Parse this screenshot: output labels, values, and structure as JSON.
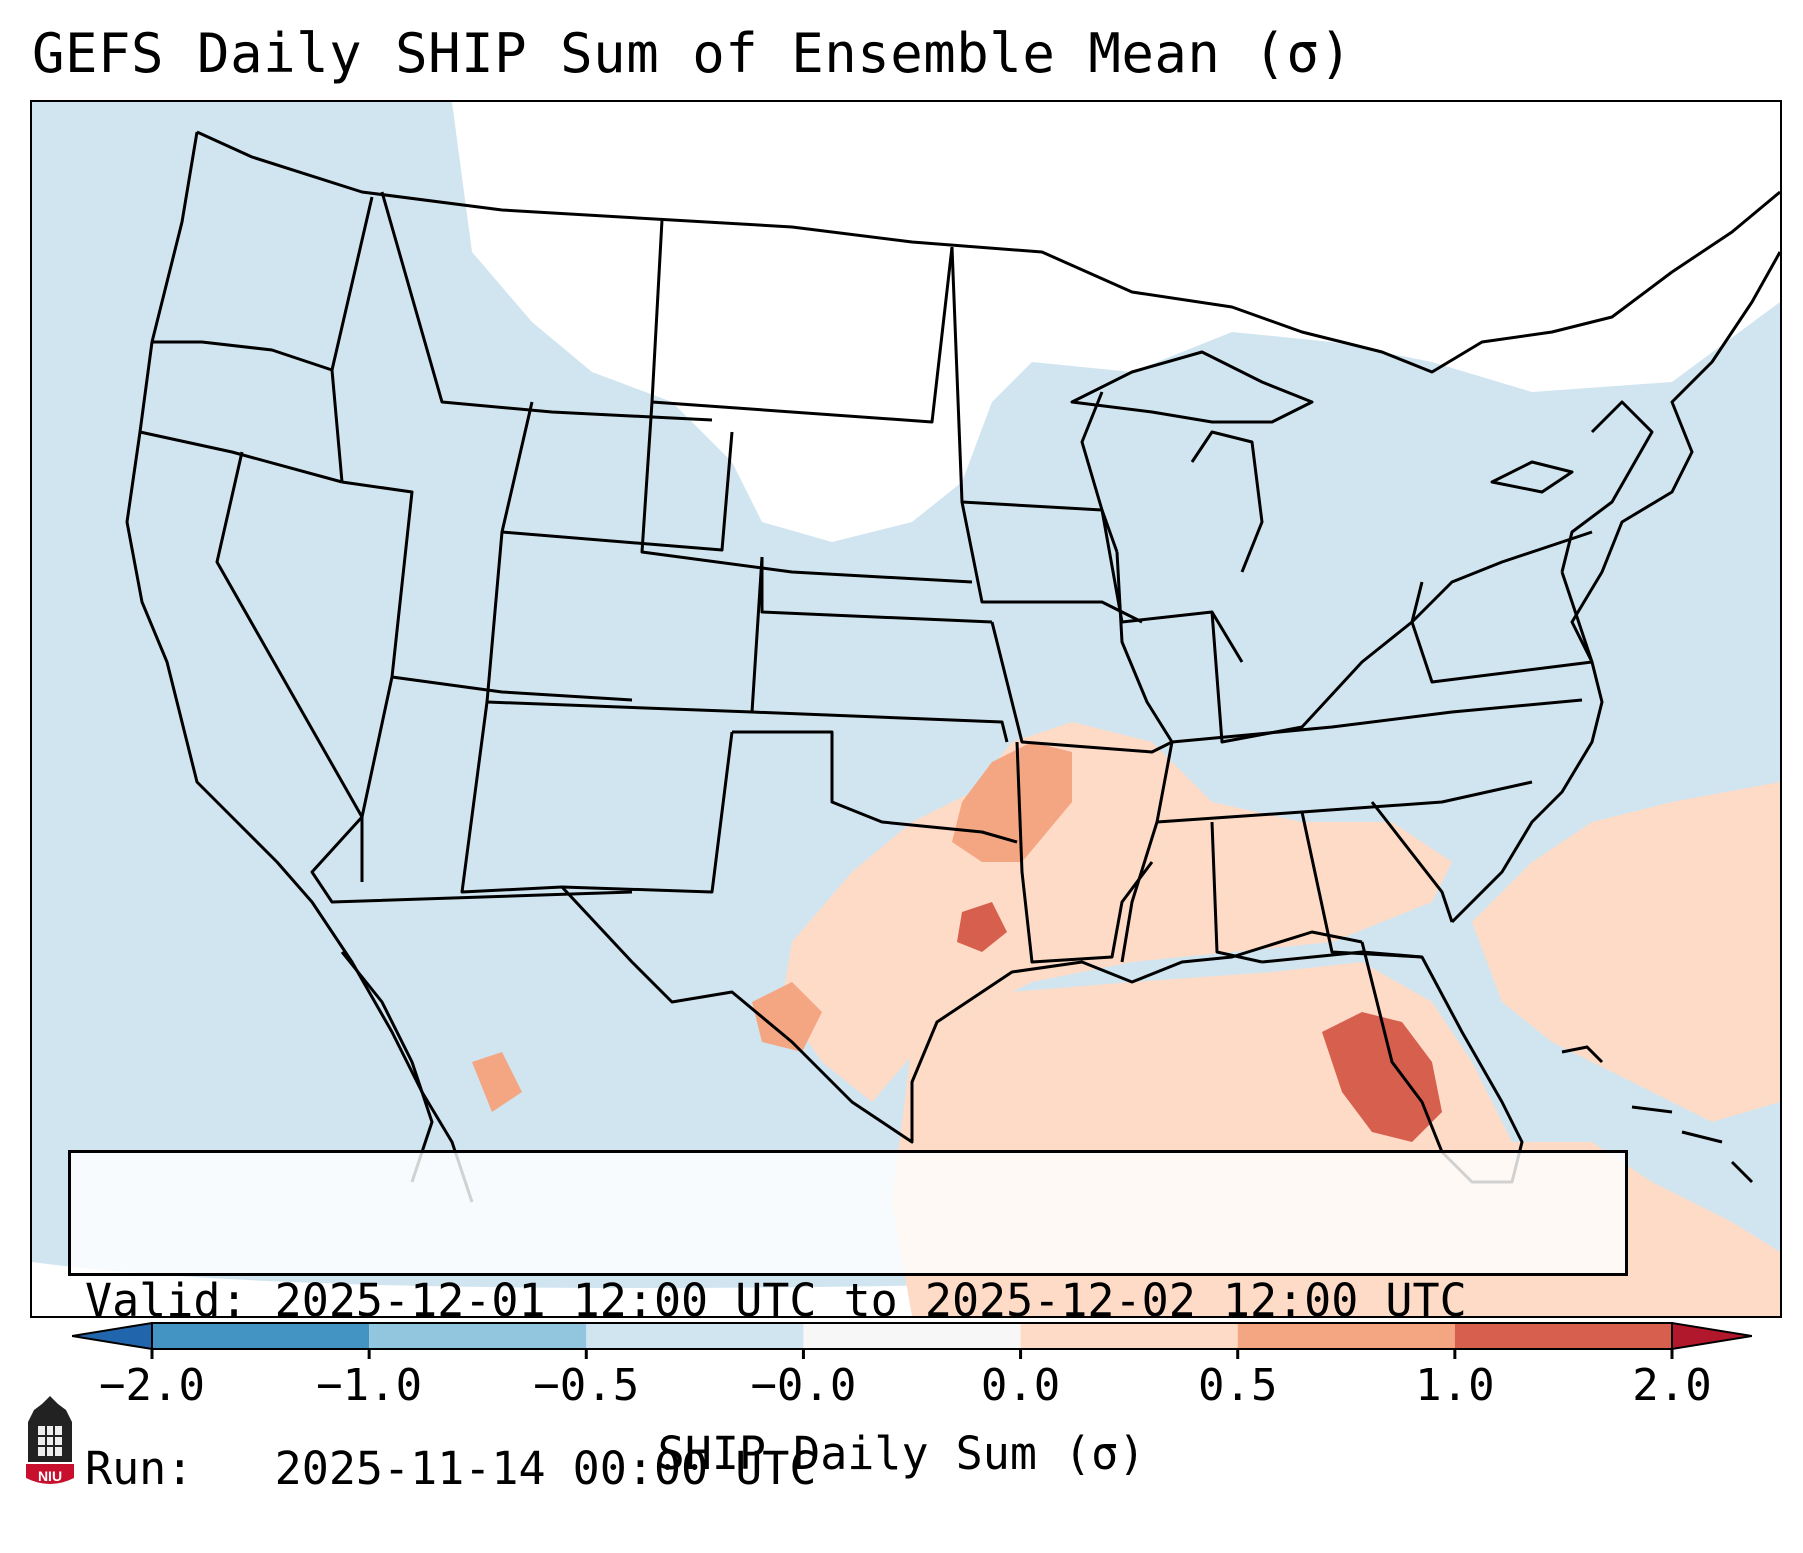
{
  "title": "GEFS Daily SHIP Sum of Ensemble Mean (σ)",
  "valid_line": "Valid: 2025-12-01 12:00 UTC to 2025-12-02 12:00 UTC",
  "run_line": "Run:   2025-11-14 00:00 UTC",
  "colorbar": {
    "label": "SHIP Daily Sum (σ)",
    "ticks": [
      "−2.0",
      "−1.0",
      "−0.5",
      "−0.0",
      "0.0",
      "0.5",
      "1.0",
      "2.0"
    ],
    "bins": [
      {
        "range": "< -2.0",
        "color": "#2166ac"
      },
      {
        "range": "-2.0 to -1.0",
        "color": "#4393c3"
      },
      {
        "range": "-1.0 to -0.5",
        "color": "#92c5de"
      },
      {
        "range": "-0.5 to -0.0",
        "color": "#d1e5f0"
      },
      {
        "range": "-0.0 to 0.0",
        "color": "#f7f7f7"
      },
      {
        "range": "0.0 to 0.5",
        "color": "#fddbc7"
      },
      {
        "range": "0.5 to 1.0",
        "color": "#f4a582"
      },
      {
        "range": "1.0 to 2.0",
        "color": "#d6604d"
      },
      {
        "range": "> 2.0",
        "color": "#b2182b"
      }
    ]
  },
  "map": {
    "region": "Contiguous United States",
    "background_value_color": "#d1e5f0",
    "regions": [
      {
        "name": "northern-plains-near-zero",
        "category": "near-zero",
        "color": "#ffffff"
      },
      {
        "name": "southern-plains-positive",
        "category": "0.0 to 0.5",
        "color": "#fddbc7"
      },
      {
        "name": "gulf-positive",
        "category": "0.0 to 0.5",
        "color": "#fddbc7"
      },
      {
        "name": "atlantic-positive",
        "category": "0.0 to 0.5",
        "color": "#fddbc7"
      },
      {
        "name": "arklatex-moderate",
        "category": "0.5 to 1.0",
        "color": "#f4a582"
      },
      {
        "name": "florida-high",
        "category": "1.0 to 2.0",
        "color": "#d6604d"
      }
    ]
  },
  "logo": {
    "text": "NIU"
  }
}
